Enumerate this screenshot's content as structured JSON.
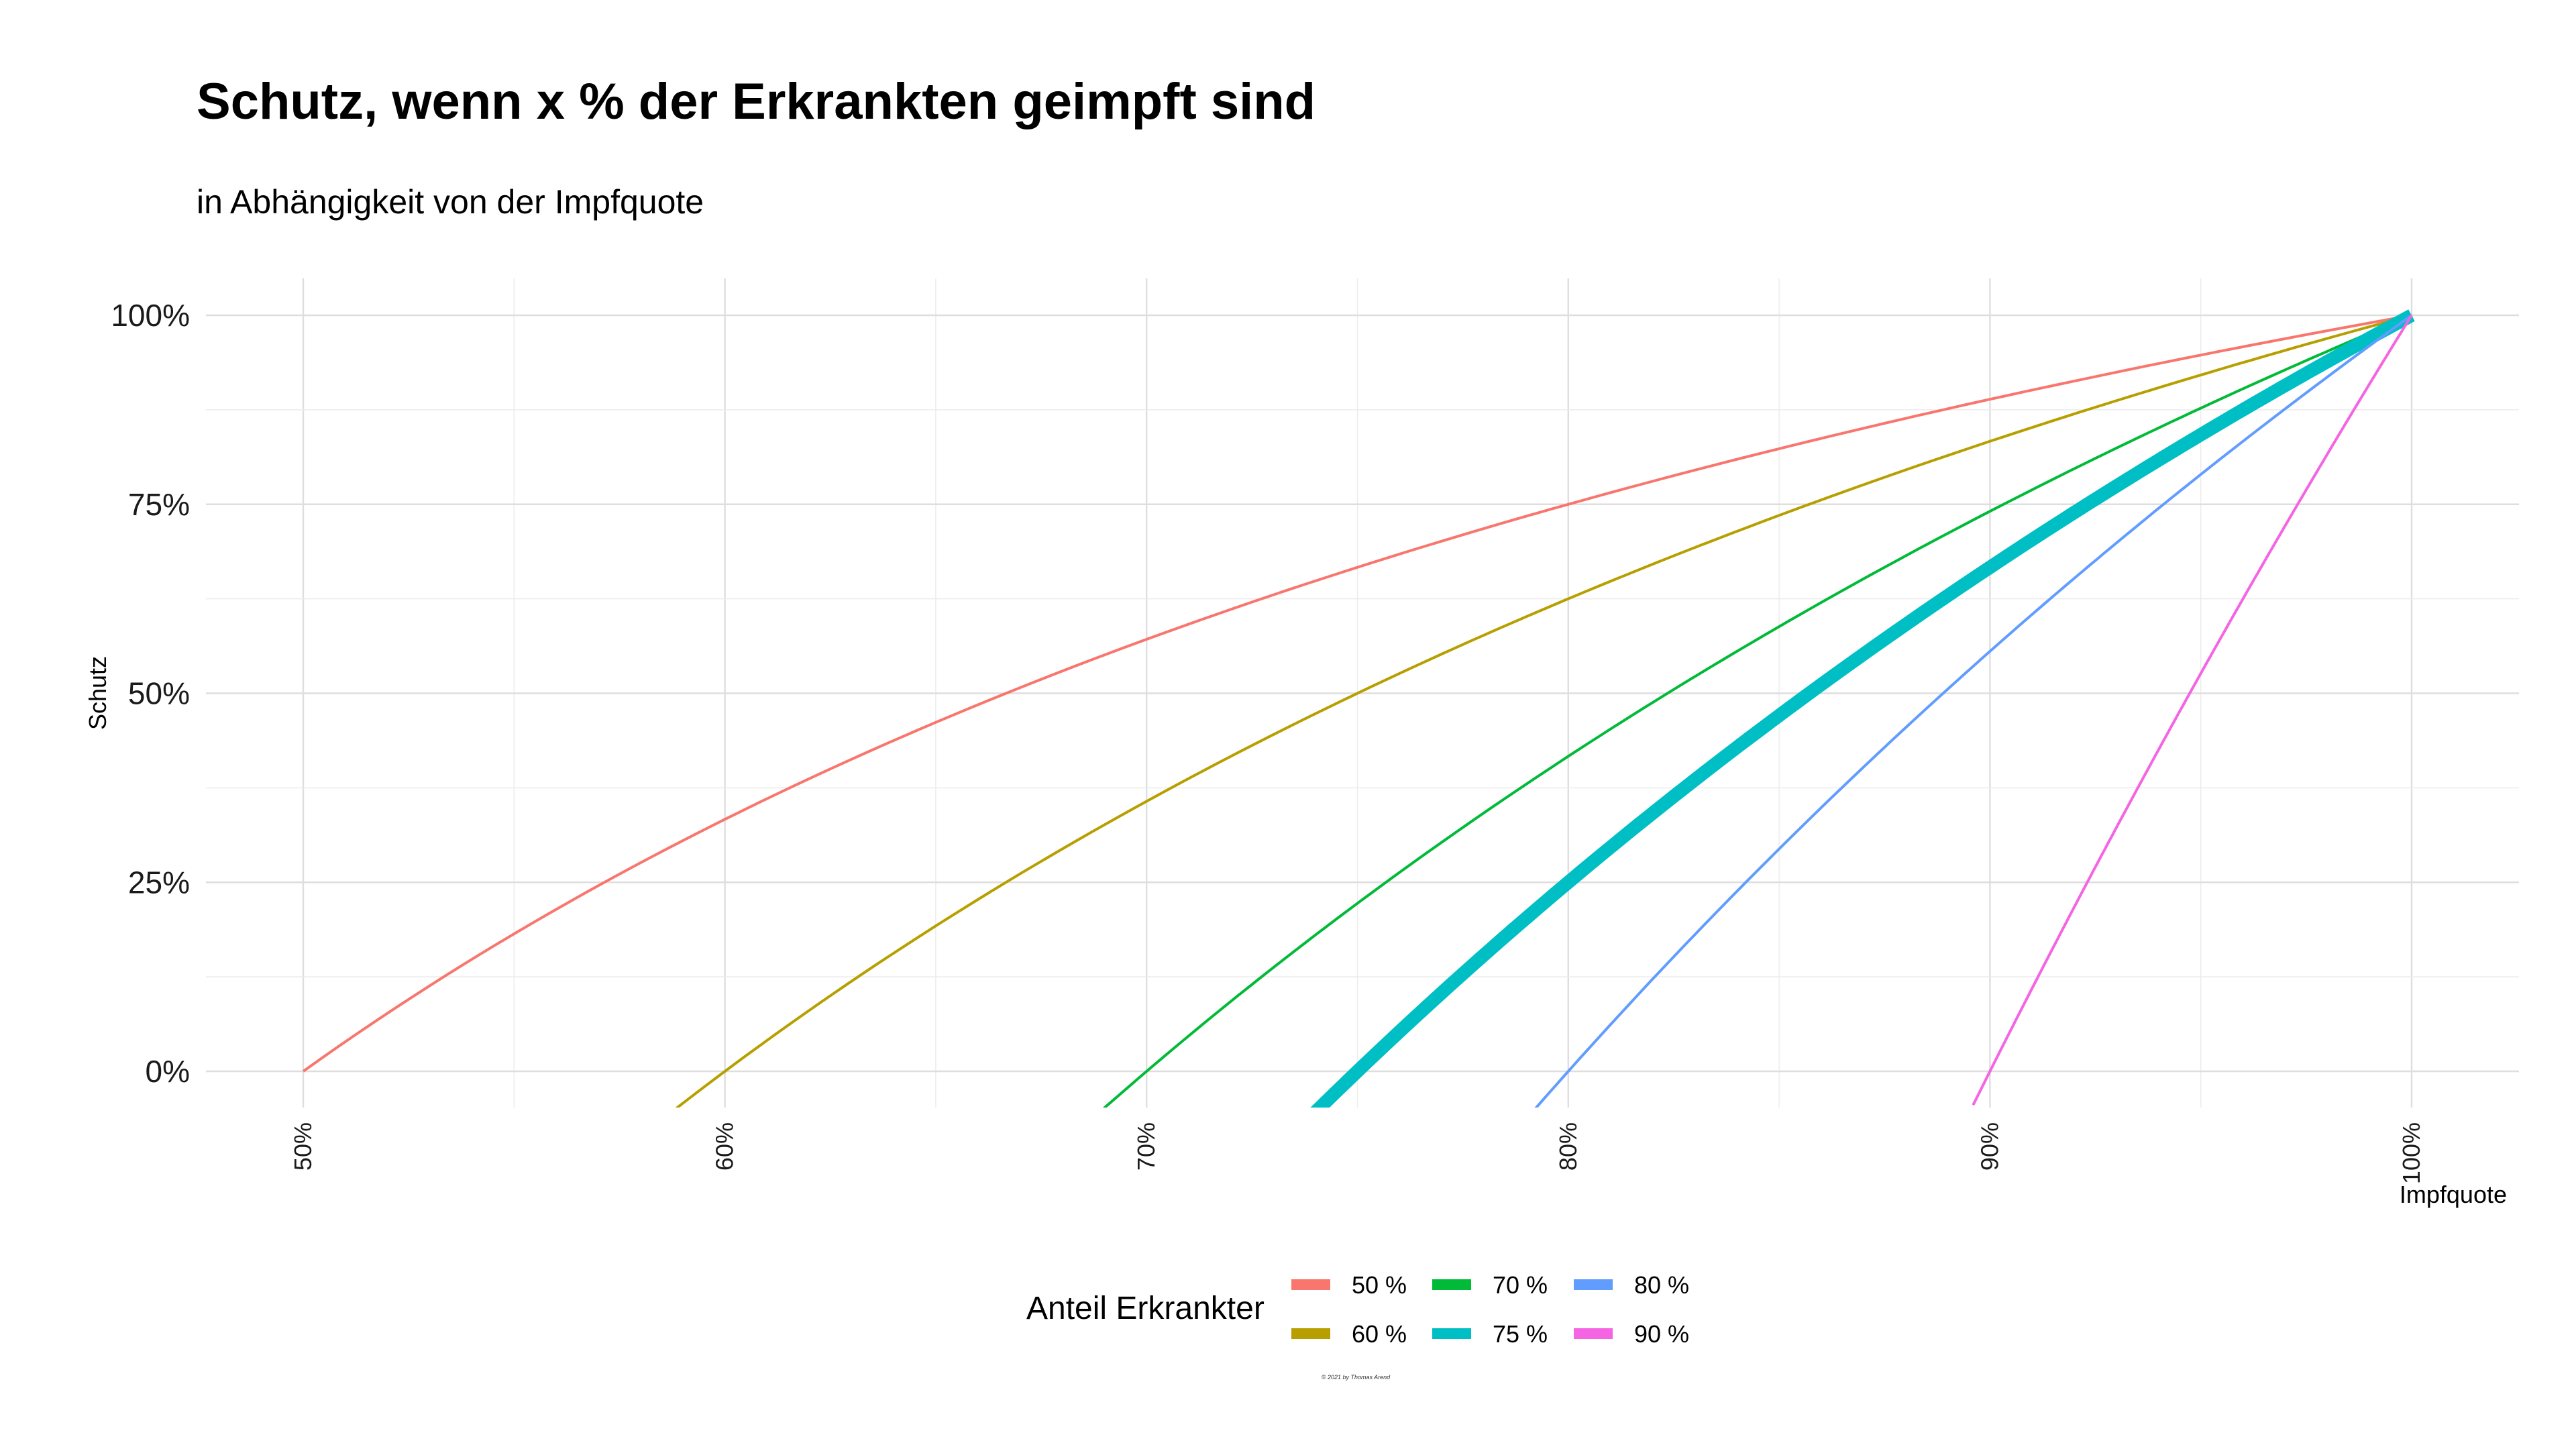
{
  "title": "Schutz, wenn x % der Erkrankten geimpft sind",
  "subtitle": "in Abhängigkeit von der Impfquote",
  "credit": "© 2021 by Thomas Arend",
  "chart_data": {
    "type": "line",
    "title": "Schutz, wenn x % der Erkrankten geimpft sind",
    "subtitle": "in Abhängigkeit von der Impfquote",
    "xlabel": "Impfquote",
    "ylabel": "Schutz",
    "xlim": [
      0.475,
      1.025
    ],
    "ylim": [
      -0.045,
      1.045
    ],
    "x_ticks": [
      0.5,
      0.6,
      0.7,
      0.8,
      0.9,
      1.0
    ],
    "x_tick_labels": [
      "50%",
      "60%",
      "70%",
      "80%",
      "90%",
      "100%"
    ],
    "y_ticks": [
      0,
      0.25,
      0.5,
      0.75,
      1.0
    ],
    "y_tick_labels": [
      "0%",
      "25%",
      "50%",
      "75%",
      "100%"
    ],
    "grid": true,
    "legend": {
      "title": "Anteil Erkrankter",
      "position": "bottom"
    },
    "series": [
      {
        "name": "50 %",
        "share": 0.5,
        "color": "#F8766D",
        "width": "thin",
        "x": [
          0.5,
          0.55,
          0.6,
          0.65,
          0.7,
          0.75,
          0.8,
          0.85,
          0.9,
          0.95,
          1.0
        ],
        "y": [
          0.0,
          0.182,
          0.333,
          0.462,
          0.571,
          0.667,
          0.75,
          0.824,
          0.889,
          0.947,
          1.0
        ]
      },
      {
        "name": "60 %",
        "share": 0.6,
        "color": "#B79F00",
        "width": "thin",
        "x": [
          0.588,
          0.6,
          0.65,
          0.7,
          0.75,
          0.8,
          0.85,
          0.9,
          0.95,
          1.0
        ],
        "y": [
          -0.05,
          0.0,
          0.192,
          0.357,
          0.5,
          0.625,
          0.735,
          0.833,
          0.921,
          1.0
        ]
      },
      {
        "name": "70 %",
        "share": 0.7,
        "color": "#00BA38",
        "width": "thin",
        "x": [
          0.688,
          0.7,
          0.75,
          0.8,
          0.85,
          0.9,
          0.95,
          1.0
        ],
        "y": [
          -0.05,
          0.0,
          0.222,
          0.417,
          0.588,
          0.741,
          0.877,
          1.0
        ]
      },
      {
        "name": "75 %",
        "share": 0.75,
        "color": "#00BFC4",
        "width": "thick",
        "x": [
          0.738,
          0.75,
          0.8,
          0.85,
          0.9,
          0.95,
          1.0
        ],
        "y": [
          -0.05,
          0.0,
          0.25,
          0.471,
          0.667,
          0.842,
          1.0
        ]
      },
      {
        "name": "80 %",
        "share": 0.8,
        "color": "#619CFF",
        "width": "thin",
        "x": [
          0.792,
          0.8,
          0.85,
          0.9,
          0.95,
          1.0
        ],
        "y": [
          -0.05,
          0.0,
          0.294,
          0.556,
          0.789,
          1.0
        ]
      },
      {
        "name": "90 %",
        "share": 0.9,
        "color": "#F564E3",
        "width": "thin",
        "x": [
          0.896,
          0.9,
          0.95,
          1.0
        ],
        "y": [
          -0.05,
          0.0,
          0.526,
          1.0
        ]
      }
    ]
  }
}
